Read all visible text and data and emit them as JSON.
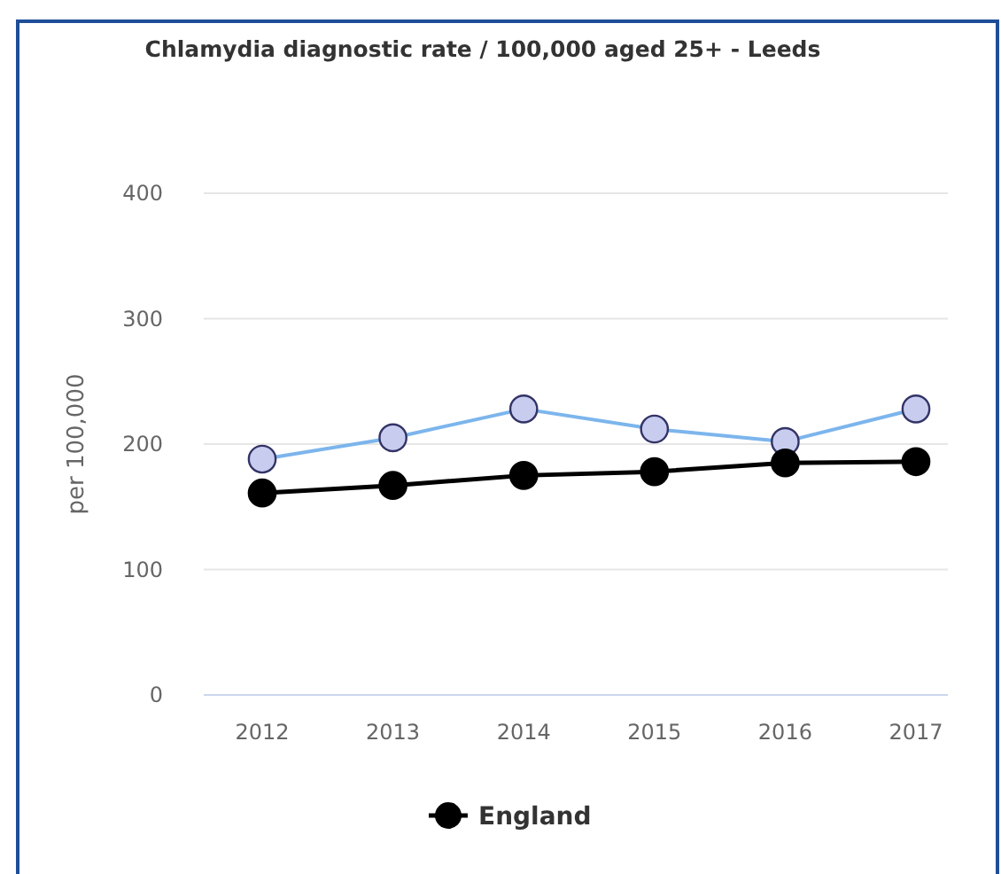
{
  "chart_data": {
    "type": "line",
    "title": "Chlamydia diagnostic rate / 100,000 aged 25+ - Leeds",
    "ylabel": "per 100,000",
    "categories": [
      "2012",
      "2013",
      "2014",
      "2015",
      "2016",
      "2017"
    ],
    "series": [
      {
        "color": "#7cb5ec",
        "colors": [
          "#c8cdf0",
          "#c8cdf0",
          "#c8cdf0",
          "#c8cdf0",
          "#c8cdf0",
          "#c8cdf0"
        ],
        "values": [
          188,
          205,
          228,
          212,
          202,
          228
        ]
      },
      {
        "name": "England",
        "color": "#000000",
        "values": [
          161,
          167,
          175,
          178,
          185,
          186
        ]
      }
    ],
    "ylim": [
      0,
      400
    ],
    "yticks": [
      0,
      100,
      200,
      300,
      400
    ],
    "grid": "y",
    "legend": "bottom",
    "marker": "circle"
  }
}
